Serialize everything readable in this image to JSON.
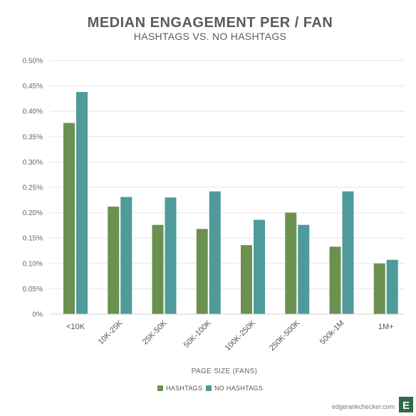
{
  "chart_data": {
    "type": "bar",
    "title": "MEDIAN ENGAGEMENT PER / FAN",
    "subtitle": "HASHTAGS VS. NO HASHTAGS",
    "xlabel": "PAGE SIZE (FANS)",
    "ylabel": "",
    "categories": [
      "<10K",
      "10K-25K",
      "25K-50K",
      "50K-100K",
      "100K-250K",
      "250K-500K",
      "500k-1M",
      "1M+"
    ],
    "series": [
      {
        "name": "HASHTAGS",
        "color": "#6b9150",
        "values": [
          0.377,
          0.212,
          0.176,
          0.168,
          0.136,
          0.2,
          0.133,
          0.1
        ]
      },
      {
        "name": "NO HASHTAGS",
        "color": "#4f9a9a",
        "values": [
          0.438,
          0.231,
          0.23,
          0.242,
          0.186,
          0.176,
          0.242,
          0.107
        ]
      }
    ],
    "ylim": [
      0,
      0.5
    ],
    "yticks": [
      "0%",
      "0.05%",
      "0.10%",
      "0.15%",
      "0.20%",
      "0.25%",
      "0.30%",
      "0.35%",
      "0.40%",
      "0.45%",
      "0.50%"
    ],
    "grid": true,
    "legend": "bottom-center"
  },
  "credit": "edgerankchecker.com",
  "logo_letter": "E",
  "colors": {
    "grid": "#e6e6e6",
    "axis": "#d0d0d0",
    "logo": "#2f6b49"
  }
}
